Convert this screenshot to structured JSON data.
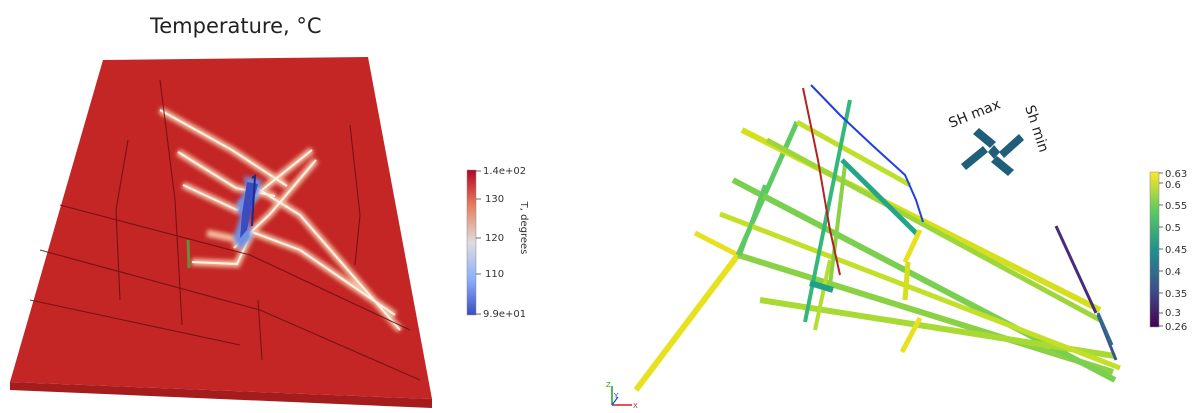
{
  "left_panel": {
    "title": "Temperature, °C",
    "colorbar": {
      "label": "T, degrees",
      "ticks": [
        "1.4e+02",
        "130",
        "120",
        "110",
        "9.9e+01"
      ],
      "colors": {
        "high": "#b40426",
        "mid": "#dddddd",
        "low": "#3b4cc0",
        "field": "#c42525"
      }
    }
  },
  "right_panel": {
    "stress": {
      "shmax_label": "SH max",
      "shmin_label": "Sh min",
      "arrow_color": "#1f5f7a"
    },
    "colorbar": {
      "ticks": [
        "0.63",
        "0.6",
        "0.55",
        "0.5",
        "0.45",
        "0.4",
        "0.35",
        "0.3",
        "0.26"
      ],
      "colormap": "viridis"
    },
    "axes_triad": {
      "z": "Z",
      "y": "Y",
      "x": "X"
    }
  }
}
